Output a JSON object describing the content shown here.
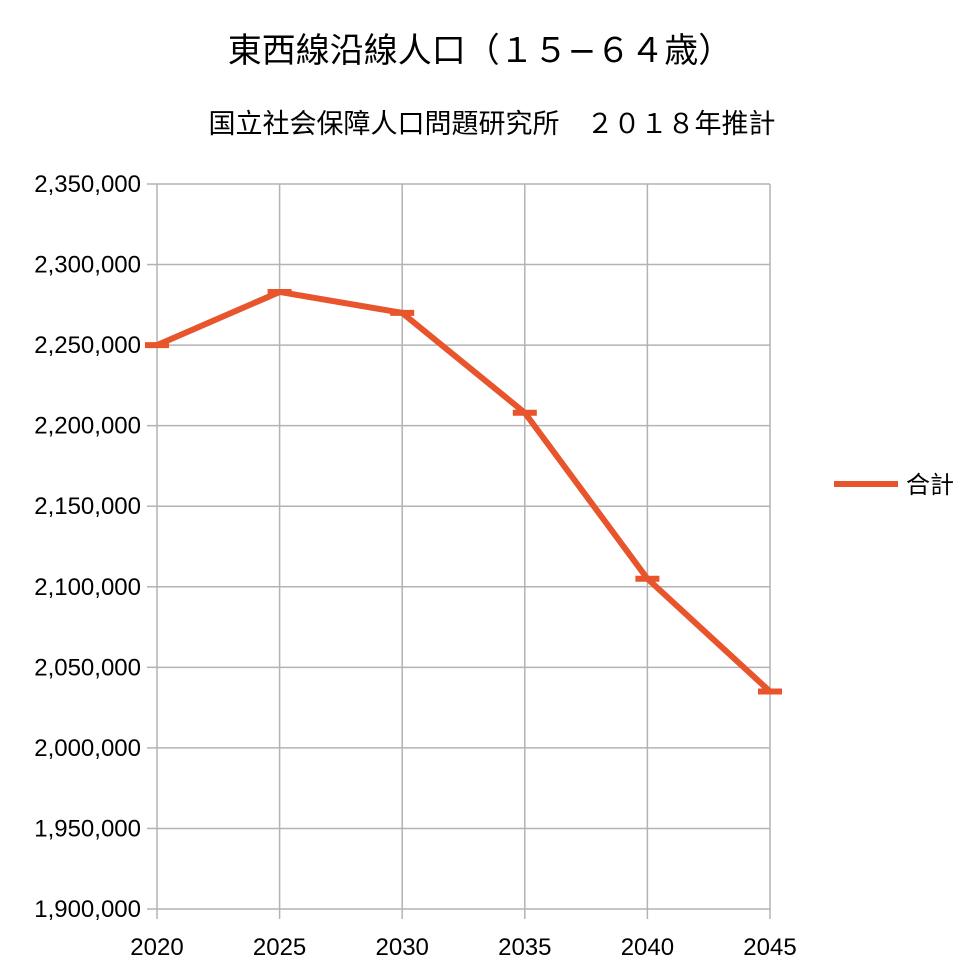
{
  "chart_data": {
    "type": "line",
    "title": "東西線沿線人口（１５−６４歳）",
    "subtitle": "国立社会保障人口問題研究所　２０１８年推計",
    "categories": [
      "2020",
      "2025",
      "2030",
      "2035",
      "2040",
      "2045"
    ],
    "series": [
      {
        "name": "合計",
        "values": [
          2250000,
          2283000,
          2270000,
          2208000,
          2105000,
          2035000
        ]
      }
    ],
    "ylim": [
      1900000,
      2350000
    ],
    "yticks": [
      1900000,
      1950000,
      2000000,
      2050000,
      2100000,
      2150000,
      2200000,
      2250000,
      2300000,
      2350000
    ],
    "ytick_labels": [
      "1,900,000",
      "1,950,000",
      "2,000,000",
      "2,050,000",
      "2,100,000",
      "2,150,000",
      "2,200,000",
      "2,250,000",
      "2,300,000",
      "2,350,000"
    ],
    "xlabel": "",
    "ylabel": "",
    "grid": true,
    "legend_position": "right",
    "colors": {
      "series": "#e8542c",
      "grid": "#b3b3b3",
      "axis": "#b3b3b3"
    }
  }
}
